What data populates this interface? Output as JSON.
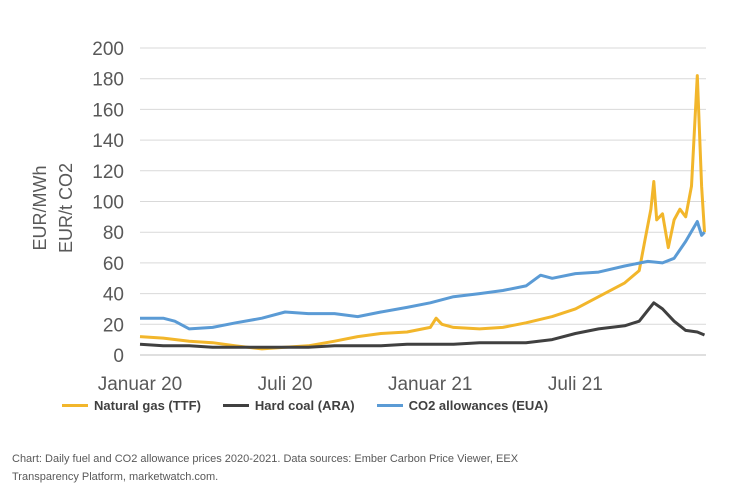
{
  "chart_data": {
    "type": "line",
    "ylabel_lines": [
      "EUR/MWh",
      "EUR/t CO2"
    ],
    "ylim": [
      0,
      200
    ],
    "yticks": [
      0,
      20,
      40,
      60,
      80,
      100,
      120,
      140,
      160,
      180,
      200
    ],
    "xlim": [
      2020.0,
      2021.95
    ],
    "xticks": [
      {
        "x": 2020.0,
        "label": "Januar 20"
      },
      {
        "x": 2020.5,
        "label": "Juli 20"
      },
      {
        "x": 2021.0,
        "label": "Januar 21"
      },
      {
        "x": 2021.5,
        "label": "Juli 21"
      }
    ],
    "grid": true,
    "legend_position": "bottom",
    "series": [
      {
        "name": "Natural gas (TTF)",
        "color": "#F2B62B",
        "points": [
          [
            2020.0,
            12
          ],
          [
            2020.08,
            11
          ],
          [
            2020.17,
            9
          ],
          [
            2020.25,
            8
          ],
          [
            2020.33,
            6
          ],
          [
            2020.42,
            4
          ],
          [
            2020.5,
            5
          ],
          [
            2020.58,
            6
          ],
          [
            2020.67,
            9
          ],
          [
            2020.75,
            12
          ],
          [
            2020.83,
            14
          ],
          [
            2020.92,
            15
          ],
          [
            2021.0,
            18
          ],
          [
            2021.02,
            24
          ],
          [
            2021.04,
            20
          ],
          [
            2021.08,
            18
          ],
          [
            2021.17,
            17
          ],
          [
            2021.25,
            18
          ],
          [
            2021.33,
            21
          ],
          [
            2021.42,
            25
          ],
          [
            2021.5,
            30
          ],
          [
            2021.58,
            38
          ],
          [
            2021.67,
            47
          ],
          [
            2021.72,
            55
          ],
          [
            2021.74,
            75
          ],
          [
            2021.76,
            95
          ],
          [
            2021.77,
            113
          ],
          [
            2021.78,
            88
          ],
          [
            2021.8,
            92
          ],
          [
            2021.82,
            70
          ],
          [
            2021.84,
            88
          ],
          [
            2021.86,
            95
          ],
          [
            2021.88,
            90
          ],
          [
            2021.9,
            110
          ],
          [
            2021.92,
            182
          ],
          [
            2021.935,
            110
          ],
          [
            2021.945,
            80
          ]
        ]
      },
      {
        "name": "Hard coal (ARA)",
        "color": "#404040",
        "points": [
          [
            2020.0,
            7
          ],
          [
            2020.08,
            6
          ],
          [
            2020.17,
            6
          ],
          [
            2020.25,
            5
          ],
          [
            2020.33,
            5
          ],
          [
            2020.42,
            5
          ],
          [
            2020.5,
            5
          ],
          [
            2020.58,
            5
          ],
          [
            2020.67,
            6
          ],
          [
            2020.75,
            6
          ],
          [
            2020.83,
            6
          ],
          [
            2020.92,
            7
          ],
          [
            2021.0,
            7
          ],
          [
            2021.08,
            7
          ],
          [
            2021.17,
            8
          ],
          [
            2021.25,
            8
          ],
          [
            2021.33,
            8
          ],
          [
            2021.42,
            10
          ],
          [
            2021.5,
            14
          ],
          [
            2021.58,
            17
          ],
          [
            2021.67,
            19
          ],
          [
            2021.72,
            22
          ],
          [
            2021.77,
            34
          ],
          [
            2021.8,
            30
          ],
          [
            2021.84,
            22
          ],
          [
            2021.88,
            16
          ],
          [
            2021.92,
            15
          ],
          [
            2021.945,
            13
          ]
        ]
      },
      {
        "name": "CO2 allowances (EUA)",
        "color": "#5B9BD5",
        "points": [
          [
            2020.0,
            24
          ],
          [
            2020.08,
            24
          ],
          [
            2020.12,
            22
          ],
          [
            2020.17,
            17
          ],
          [
            2020.25,
            18
          ],
          [
            2020.33,
            21
          ],
          [
            2020.42,
            24
          ],
          [
            2020.5,
            28
          ],
          [
            2020.58,
            27
          ],
          [
            2020.67,
            27
          ],
          [
            2020.75,
            25
          ],
          [
            2020.83,
            28
          ],
          [
            2020.92,
            31
          ],
          [
            2021.0,
            34
          ],
          [
            2021.08,
            38
          ],
          [
            2021.17,
            40
          ],
          [
            2021.25,
            42
          ],
          [
            2021.33,
            45
          ],
          [
            2021.38,
            52
          ],
          [
            2021.42,
            50
          ],
          [
            2021.5,
            53
          ],
          [
            2021.58,
            54
          ],
          [
            2021.67,
            58
          ],
          [
            2021.75,
            61
          ],
          [
            2021.8,
            60
          ],
          [
            2021.84,
            63
          ],
          [
            2021.88,
            74
          ],
          [
            2021.92,
            87
          ],
          [
            2021.935,
            78
          ],
          [
            2021.945,
            80
          ]
        ]
      }
    ]
  },
  "caption": "Chart: Daily fuel and CO2 allowance prices 2020-2021. Data sources: Ember Carbon Price Viewer, EEX\nTransparency Platform, marketwatch.com."
}
